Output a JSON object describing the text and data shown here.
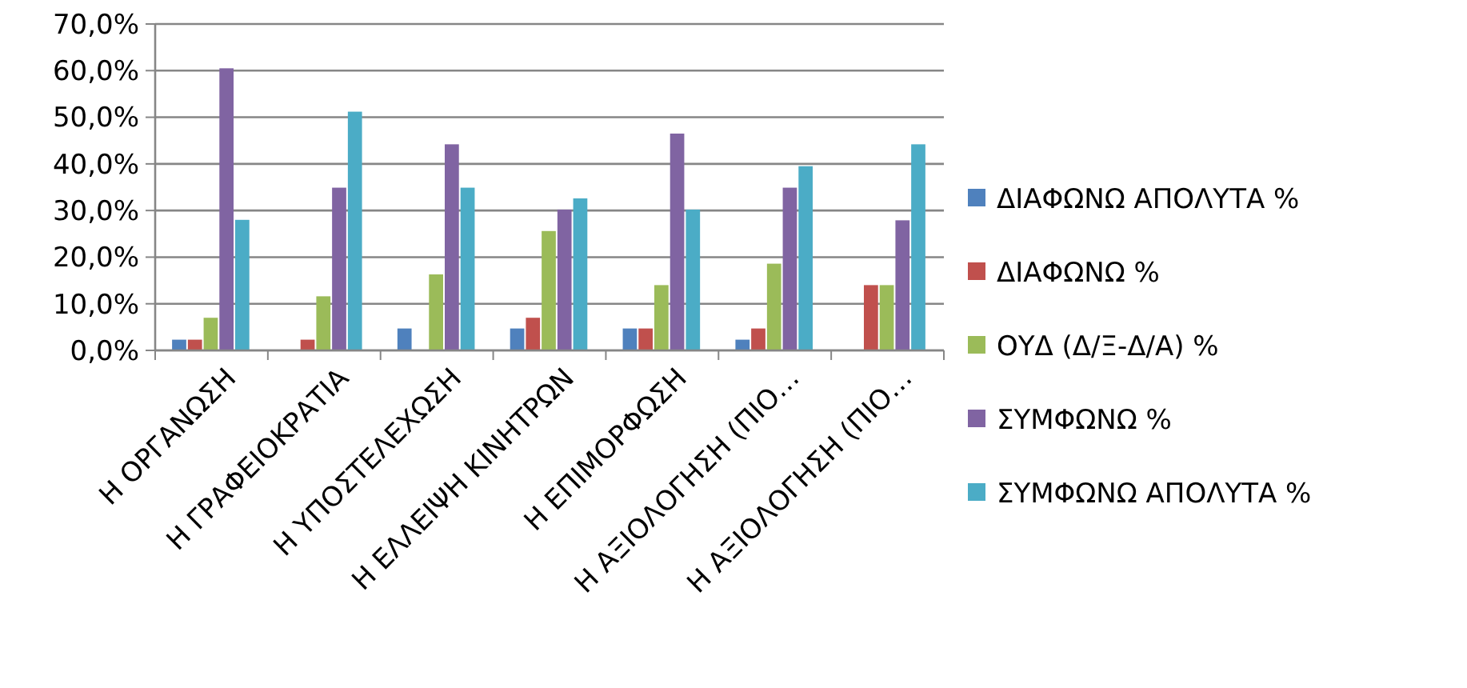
{
  "chart_data": {
    "type": "bar",
    "categories": [
      "Η ΟΡΓΑΝΩΣΗ",
      "Η ΓΡΑΦΕΙΟΚΡΑΤΙΑ",
      "Η ΥΠΟΣΤΕΛΕΧΩΣΗ",
      "Η ΕΛΛΕΙΨΗ ΚΙΝΗΤΡΩΝ",
      "Η ΕΠΙΜΟΡΦΩΣΗ",
      "Η ΑΞΙΟΛΟΓΗΣΗ (ΠΙΟ…",
      "Η ΑΞΙΟΛΟΓΗΣΗ (ΠΙΟ…"
    ],
    "series": [
      {
        "name": "ΔΙΑΦΩΝΩ ΑΠΟΛΥΤΑ %",
        "color": "#4f81bd",
        "values": [
          2.3,
          0,
          4.7,
          4.7,
          4.7,
          2.3,
          0
        ]
      },
      {
        "name": "ΔΙΑΦΩΝΩ %",
        "color": "#c0504d",
        "values": [
          2.3,
          2.3,
          0,
          7.0,
          4.7,
          4.7,
          14.0
        ]
      },
      {
        "name": "ΟΥΔ (Δ/Ξ-Δ/Α) %",
        "color": "#9bbb59",
        "values": [
          7.0,
          11.6,
          16.3,
          25.6,
          14.0,
          18.6,
          14.0
        ]
      },
      {
        "name": "ΣΥΜΦΩΝΩ %",
        "color": "#8064a2",
        "values": [
          60.5,
          34.9,
          44.2,
          30.2,
          46.5,
          34.9,
          27.9
        ]
      },
      {
        "name": "ΣΥΜΦΩΝΩ ΑΠΟΛΥΤΑ %",
        "color": "#4bacc6",
        "values": [
          28.0,
          51.2,
          34.9,
          32.6,
          30.2,
          39.5,
          44.2
        ]
      }
    ],
    "ylim": [
      0,
      70
    ],
    "yticks": [
      {
        "value": 0,
        "label": "0,0%"
      },
      {
        "value": 10,
        "label": "10,0%"
      },
      {
        "value": 20,
        "label": "20,0%"
      },
      {
        "value": 30,
        "label": "30,0%"
      },
      {
        "value": 40,
        "label": "40,0%"
      },
      {
        "value": 50,
        "label": "50,0%"
      },
      {
        "value": 60,
        "label": "60,0%"
      },
      {
        "value": 70,
        "label": "70,0%"
      }
    ],
    "grid": "y",
    "legend": "right"
  }
}
